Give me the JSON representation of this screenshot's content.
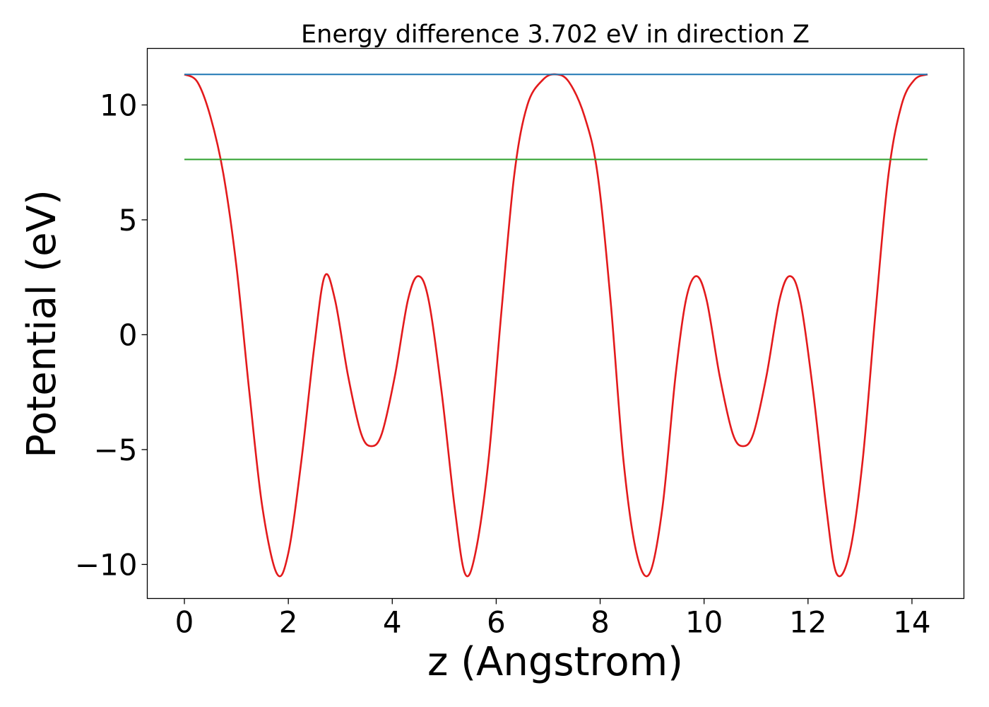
{
  "chart_data": {
    "type": "line",
    "title": "Energy difference 3.702 eV in direction Z",
    "xlabel": "z (Angstrom)",
    "ylabel": "Potential (eV)",
    "xlim": [
      -0.714,
      15.0
    ],
    "ylim": [
      -11.48,
      12.46
    ],
    "xticks": [
      0,
      2,
      4,
      6,
      8,
      10,
      12,
      14
    ],
    "xtick_labels": [
      "0",
      "2",
      "4",
      "6",
      "8",
      "10",
      "12",
      "14"
    ],
    "yticks": [
      -10,
      -5,
      0,
      5,
      10
    ],
    "ytick_labels": [
      "−10",
      "−5",
      "0",
      "5",
      "10"
    ],
    "grid": false,
    "legend": "none",
    "series": [
      {
        "color": "#e31a1c",
        "style": "curve",
        "x": [
          0,
          0.25,
          0.5,
          0.75,
          1.0,
          1.25,
          1.5,
          1.78,
          2.0,
          2.25,
          2.5,
          2.7,
          2.9,
          3.15,
          3.4,
          3.6,
          3.8,
          4.05,
          4.3,
          4.5,
          4.7,
          4.95,
          5.2,
          5.4,
          5.6,
          5.85,
          6.1,
          6.35,
          6.6,
          6.9,
          7.15,
          7.4,
          7.7,
          7.95,
          8.2,
          8.45,
          8.7,
          8.95,
          9.2,
          9.45,
          9.65,
          9.85,
          10.05,
          10.3,
          10.55,
          10.75,
          10.95,
          11.2,
          11.45,
          11.65,
          11.85,
          12.1,
          12.35,
          12.55,
          12.8,
          13.05,
          13.3,
          13.55,
          13.8,
          14.05,
          14.3
        ],
        "y": [
          11.33,
          11.0,
          9.5,
          7.0,
          3.0,
          -2.5,
          -7.5,
          -10.4,
          -9.5,
          -5.5,
          -0.5,
          2.55,
          1.5,
          -1.8,
          -4.3,
          -4.85,
          -4.3,
          -1.8,
          1.5,
          2.55,
          1.5,
          -2.5,
          -7.5,
          -10.4,
          -9.5,
          -5.5,
          1.0,
          7.0,
          10.0,
          11.1,
          11.33,
          11.0,
          9.5,
          7.0,
          1.5,
          -5.5,
          -9.5,
          -10.4,
          -7.5,
          -1.8,
          1.5,
          2.55,
          1.5,
          -1.8,
          -4.3,
          -4.85,
          -4.3,
          -1.8,
          1.5,
          2.55,
          1.5,
          -2.5,
          -7.5,
          -10.4,
          -9.5,
          -5.5,
          1.0,
          7.0,
          10.0,
          11.1,
          11.33
        ]
      },
      {
        "color": "#1f77b4",
        "style": "straight",
        "x": [
          0,
          14.3
        ],
        "y": [
          11.33,
          11.33
        ]
      },
      {
        "color": "#2ca02c",
        "style": "straight",
        "x": [
          0,
          14.3
        ],
        "y": [
          7.63,
          7.63
        ]
      }
    ]
  }
}
